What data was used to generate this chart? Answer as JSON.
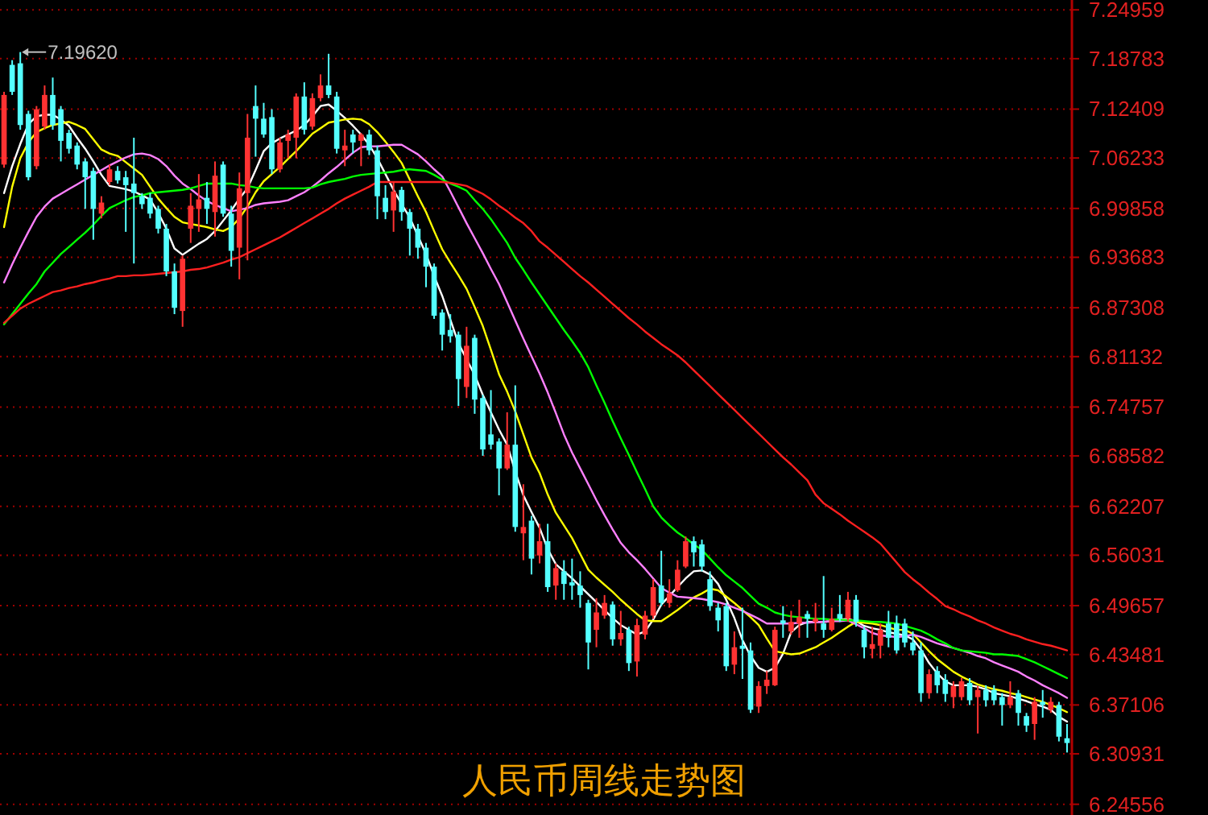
{
  "chart_data": {
    "type": "candlestick",
    "title": "人民币周线走势图",
    "categories": [
      null,
      null,
      null,
      null,
      null,
      null,
      null,
      null,
      null,
      null,
      null,
      null,
      null,
      null,
      null,
      null,
      null,
      null,
      null,
      null,
      null,
      null,
      null,
      null,
      null,
      null,
      null,
      null,
      null,
      null,
      null,
      null,
      null,
      null,
      null,
      null,
      null,
      null,
      null,
      null,
      null,
      null,
      null,
      null,
      null,
      null,
      null,
      null,
      null,
      null,
      null,
      null,
      null,
      null,
      null,
      null,
      null,
      null,
      null,
      null,
      null,
      null,
      null,
      null,
      null,
      null,
      null,
      null,
      null,
      null,
      null,
      null,
      null,
      null,
      null,
      null,
      null,
      null,
      null,
      null,
      null,
      null,
      null,
      null,
      null,
      null,
      null,
      null,
      null,
      null,
      null,
      null,
      null,
      null,
      null,
      null,
      null,
      null,
      null,
      null,
      null,
      null,
      null,
      null,
      null,
      null,
      null,
      null,
      null,
      null,
      null,
      null,
      null,
      null,
      null,
      null,
      null,
      null,
      null,
      null,
      null,
      null,
      null,
      null,
      null,
      null,
      null,
      null,
      null,
      null,
      null,
      null
    ],
    "ohlc": [
      [
        7.054,
        7.146,
        7.05,
        7.142
      ],
      [
        7.18,
        7.186,
        7.142,
        7.146
      ],
      [
        7.182,
        7.1962,
        7.098,
        7.104
      ],
      [
        7.118,
        7.122,
        7.034,
        7.038
      ],
      [
        7.052,
        7.128,
        7.048,
        7.124
      ],
      [
        7.102,
        7.154,
        7.098,
        7.142
      ],
      [
        7.142,
        7.164,
        7.098,
        7.104
      ],
      [
        7.124,
        7.128,
        7.058,
        7.084
      ],
      [
        7.094,
        7.098,
        7.068,
        7.074
      ],
      [
        7.078,
        7.082,
        7.048,
        7.054
      ],
      [
        7.058,
        7.062,
        6.998,
        7.038
      ],
      [
        7.046,
        7.05,
        6.959,
        6.998
      ],
      [
        6.992,
        7.014,
        6.986,
        7.006
      ],
      [
        7.032,
        7.054,
        7.028,
        7.048
      ],
      [
        7.046,
        7.052,
        7.03,
        7.034
      ],
      [
        7.038,
        7.046,
        6.969,
        7.028
      ],
      [
        7.03,
        7.088,
        6.929,
        7.018
      ],
      [
        7.014,
        7.018,
        6.998,
        7.004
      ],
      [
        7.012,
        7.018,
        6.986,
        6.992
      ],
      [
        6.998,
        7.002,
        6.967,
        6.973
      ],
      [
        6.973,
        6.979,
        6.913,
        6.919
      ],
      [
        6.919,
        6.929,
        6.865,
        6.873
      ],
      [
        6.869,
        6.939,
        6.849,
        6.935
      ],
      [
        6.973,
        7.018,
        6.955,
        7.002
      ],
      [
        6.998,
        7.042,
        6.969,
        7.01
      ],
      [
        7.012,
        7.032,
        6.979,
        6.998
      ],
      [
        6.994,
        7.058,
        6.963,
        7.04
      ],
      [
        7.054,
        7.058,
        6.988,
        6.992
      ],
      [
        6.992,
        7.002,
        6.925,
        6.945
      ],
      [
        6.949,
        7.044,
        6.909,
        7.024
      ],
      [
        7.018,
        7.118,
        6.933,
        7.088
      ],
      [
        7.128,
        7.154,
        7.064,
        7.112
      ],
      [
        7.112,
        7.132,
        7.088,
        7.092
      ],
      [
        7.114,
        7.124,
        7.042,
        7.048
      ],
      [
        7.048,
        7.088,
        7.044,
        7.082
      ],
      [
        7.084,
        7.098,
        7.062,
        7.092
      ],
      [
        7.088,
        7.144,
        7.062,
        7.14
      ],
      [
        7.14,
        7.158,
        7.092,
        7.098
      ],
      [
        7.102,
        7.144,
        7.098,
        7.138
      ],
      [
        7.138,
        7.168,
        7.134,
        7.154
      ],
      [
        7.154,
        7.194,
        7.138,
        7.142
      ],
      [
        7.14,
        7.146,
        7.068,
        7.074
      ],
      [
        7.072,
        7.098,
        7.052,
        7.078
      ],
      [
        7.092,
        7.098,
        7.068,
        7.082
      ],
      [
        7.084,
        7.094,
        7.052,
        7.092
      ],
      [
        7.092,
        7.098,
        7.066,
        7.072
      ],
      [
        7.072,
        7.078,
        6.985,
        7.014
      ],
      [
        7.012,
        7.028,
        6.985,
        6.994
      ],
      [
        6.996,
        7.032,
        6.969,
        7.02
      ],
      [
        7.022,
        7.026,
        6.983,
        6.994
      ],
      [
        6.994,
        6.998,
        6.939,
        6.973
      ],
      [
        6.973,
        6.979,
        6.935,
        6.949
      ],
      [
        6.949,
        6.955,
        6.899,
        6.925
      ],
      [
        6.925,
        6.929,
        6.859,
        6.863
      ],
      [
        6.867,
        6.871,
        6.819,
        6.839
      ],
      [
        6.845,
        6.865,
        6.829,
        6.837
      ],
      [
        6.839,
        6.843,
        6.749,
        6.783
      ],
      [
        6.773,
        6.849,
        6.759,
        6.825
      ],
      [
        6.835,
        6.839,
        6.739,
        6.757
      ],
      [
        6.759,
        6.763,
        6.686,
        6.694
      ],
      [
        6.713,
        6.769,
        6.694,
        6.7
      ],
      [
        6.704,
        6.708,
        6.636,
        6.67
      ],
      [
        6.67,
        6.741,
        6.668,
        6.7
      ],
      [
        6.7,
        6.775,
        6.59,
        6.596
      ],
      [
        6.588,
        6.65,
        6.554,
        6.596
      ],
      [
        6.604,
        6.61,
        6.536,
        6.556
      ],
      [
        6.56,
        6.6,
        6.55,
        6.578
      ],
      [
        6.578,
        6.6,
        6.514,
        6.52
      ],
      [
        6.522,
        6.55,
        6.504,
        6.544
      ],
      [
        6.54,
        6.554,
        6.504,
        6.524
      ],
      [
        6.526,
        6.556,
        6.504,
        6.522
      ],
      [
        6.522,
        6.54,
        6.494,
        6.51
      ],
      [
        6.5,
        6.504,
        6.416,
        6.45
      ],
      [
        6.466,
        6.506,
        6.444,
        6.488
      ],
      [
        6.484,
        6.51,
        6.48,
        6.5
      ],
      [
        6.498,
        6.502,
        6.446,
        6.454
      ],
      [
        6.454,
        6.49,
        6.446,
        6.462
      ],
      [
        6.466,
        6.47,
        6.414,
        6.424
      ],
      [
        6.426,
        6.48,
        6.407,
        6.472
      ],
      [
        6.46,
        6.49,
        6.454,
        6.484
      ],
      [
        6.484,
        6.53,
        6.48,
        6.52
      ],
      [
        6.522,
        6.566,
        6.496,
        6.5
      ],
      [
        6.5,
        6.53,
        6.494,
        6.512
      ],
      [
        6.516,
        6.554,
        6.514,
        6.542
      ],
      [
        6.546,
        6.584,
        6.544,
        6.578
      ],
      [
        6.578,
        6.584,
        6.546,
        6.564
      ],
      [
        6.574,
        6.58,
        6.54,
        6.546
      ],
      [
        6.53,
        6.54,
        6.49,
        6.496
      ],
      [
        6.494,
        6.5,
        6.464,
        6.478
      ],
      [
        6.496,
        6.5,
        6.414,
        6.42
      ],
      [
        6.422,
        6.464,
        6.41,
        6.444
      ],
      [
        6.446,
        6.494,
        6.404,
        6.442
      ],
      [
        6.44,
        6.45,
        6.361,
        6.365
      ],
      [
        6.369,
        6.401,
        6.361,
        6.395
      ],
      [
        6.395,
        6.414,
        6.385,
        6.403
      ],
      [
        6.396,
        6.47,
        6.395,
        6.466
      ],
      [
        6.478,
        6.496,
        6.456,
        6.474
      ],
      [
        6.464,
        6.49,
        6.46,
        6.476
      ],
      [
        6.474,
        6.504,
        6.456,
        6.482
      ],
      [
        6.486,
        6.49,
        6.456,
        6.48
      ],
      [
        6.476,
        6.5,
        6.464,
        6.48
      ],
      [
        6.474,
        6.534,
        6.456,
        6.466
      ],
      [
        6.466,
        6.494,
        6.464,
        6.48
      ],
      [
        6.486,
        6.51,
        6.476,
        6.48
      ],
      [
        6.48,
        6.514,
        6.476,
        6.504
      ],
      [
        6.504,
        6.51,
        6.47,
        6.476
      ],
      [
        6.466,
        6.47,
        6.43,
        6.444
      ],
      [
        6.442,
        6.47,
        6.43,
        6.448
      ],
      [
        6.446,
        6.474,
        6.43,
        6.466
      ],
      [
        6.474,
        6.49,
        6.444,
        6.456
      ],
      [
        6.474,
        6.484,
        6.436,
        6.44
      ],
      [
        6.474,
        6.48,
        6.444,
        6.45
      ],
      [
        6.45,
        6.464,
        6.434,
        6.44
      ],
      [
        6.44,
        6.45,
        6.375,
        6.386
      ],
      [
        6.386,
        6.416,
        6.379,
        6.41
      ],
      [
        6.414,
        6.42,
        6.386,
        6.396
      ],
      [
        6.403,
        6.41,
        6.375,
        6.385
      ],
      [
        6.381,
        6.401,
        6.367,
        6.395
      ],
      [
        6.381,
        6.405,
        6.377,
        6.401
      ],
      [
        6.399,
        6.405,
        6.371,
        6.377
      ],
      [
        6.381,
        6.395,
        6.335,
        6.39
      ],
      [
        6.39,
        6.396,
        6.369,
        6.377
      ],
      [
        6.39,
        6.396,
        6.371,
        6.377
      ],
      [
        6.381,
        6.386,
        6.345,
        6.371
      ],
      [
        6.371,
        6.401,
        6.367,
        6.381
      ],
      [
        6.386,
        6.39,
        6.345,
        6.361
      ],
      [
        6.357,
        6.361,
        6.337,
        6.345
      ],
      [
        6.347,
        6.381,
        6.327,
        6.375
      ],
      [
        6.375,
        6.39,
        6.355,
        6.371
      ],
      [
        6.365,
        6.381,
        6.361,
        6.375
      ],
      [
        6.371,
        6.375,
        6.325,
        6.331
      ],
      [
        6.329,
        6.347,
        6.311,
        6.323
      ]
    ],
    "series": [
      {
        "type": "line",
        "color": "#ffffff",
        "values": [
          7.018,
          7.052,
          7.08,
          7.105,
          7.115,
          7.117,
          7.117,
          7.111,
          7.103,
          7.088,
          7.074,
          7.058,
          7.041,
          7.027,
          7.025,
          7.023,
          7.02,
          7.015,
          7.01,
          6.993,
          6.973,
          6.948,
          6.94,
          6.947,
          6.954,
          6.96,
          6.97,
          6.983,
          6.996,
          7.011,
          7.024,
          7.047,
          7.071,
          7.081,
          7.087,
          7.092,
          7.097,
          7.104,
          7.115,
          7.128,
          7.13,
          7.122,
          7.113,
          7.103,
          7.092,
          7.079,
          7.062,
          7.042,
          7.022,
          7.004,
          6.987,
          6.964,
          6.941,
          6.913,
          6.888,
          6.858,
          6.828,
          6.808,
          6.788,
          6.763,
          6.741,
          6.719,
          6.7,
          6.666,
          6.636,
          6.615,
          6.595,
          6.568,
          6.549,
          6.54,
          6.531,
          6.521,
          6.511,
          6.501,
          6.491,
          6.481,
          6.472,
          6.466,
          6.46,
          6.464,
          6.479,
          6.498,
          6.509,
          6.52,
          6.531,
          6.54,
          6.541,
          6.536,
          6.524,
          6.504,
          6.481,
          6.453,
          6.433,
          6.418,
          6.413,
          6.418,
          6.436,
          6.463,
          6.472,
          6.476,
          6.476,
          6.476,
          6.477,
          6.479,
          6.48,
          6.477,
          6.471,
          6.468,
          6.466,
          6.463,
          6.461,
          6.459,
          6.454,
          6.441,
          6.424,
          6.411,
          6.401,
          6.396,
          6.396,
          6.396,
          6.394,
          6.391,
          6.386,
          6.384,
          6.382,
          6.379,
          6.376,
          6.372,
          6.369,
          6.365,
          6.356,
          6.35
        ]
      },
      {
        "type": "line",
        "color": "#ffff00",
        "values": [
          6.975,
          7.026,
          7.062,
          7.082,
          7.095,
          7.1,
          7.104,
          7.106,
          7.108,
          7.104,
          7.099,
          7.086,
          7.073,
          7.068,
          7.065,
          7.057,
          7.049,
          7.041,
          7.026,
          7.011,
          6.999,
          6.988,
          6.981,
          6.979,
          6.977,
          6.975,
          6.972,
          6.97,
          6.975,
          6.986,
          7.001,
          7.019,
          7.033,
          7.042,
          7.051,
          7.061,
          7.071,
          7.082,
          7.093,
          7.1,
          7.107,
          7.109,
          7.111,
          7.112,
          7.111,
          7.105,
          7.095,
          7.083,
          7.07,
          7.056,
          7.035,
          7.014,
          6.994,
          6.97,
          6.947,
          6.93,
          6.914,
          6.897,
          6.874,
          6.85,
          6.82,
          6.789,
          6.767,
          6.742,
          6.713,
          6.684,
          6.664,
          6.637,
          6.614,
          6.598,
          6.582,
          6.562,
          6.542,
          6.532,
          6.523,
          6.514,
          6.504,
          6.495,
          6.486,
          6.478,
          6.477,
          6.477,
          6.484,
          6.491,
          6.499,
          6.507,
          6.512,
          6.518,
          6.516,
          6.508,
          6.5,
          6.491,
          6.482,
          6.472,
          6.455,
          6.439,
          6.437,
          6.435,
          6.436,
          6.44,
          6.444,
          6.45,
          6.456,
          6.463,
          6.47,
          6.476,
          6.475,
          6.474,
          6.472,
          6.469,
          6.466,
          6.466,
          6.461,
          6.45,
          6.439,
          6.429,
          6.421,
          6.413,
          6.407,
          6.402,
          6.397,
          6.394,
          6.391,
          6.389,
          6.386,
          6.384,
          6.381,
          6.378,
          6.375,
          6.371,
          6.367,
          6.362
        ]
      },
      {
        "type": "line",
        "color": "#ff80ff",
        "values": [
          6.905,
          6.928,
          6.949,
          6.969,
          6.988,
          7.001,
          7.011,
          7.017,
          7.023,
          7.029,
          7.035,
          7.041,
          7.047,
          7.053,
          7.058,
          7.063,
          7.067,
          7.068,
          7.066,
          7.061,
          7.052,
          7.04,
          7.03,
          7.023,
          7.015,
          7.008,
          7.003,
          6.999,
          6.995,
          6.997,
          6.999,
          7.003,
          7.005,
          7.006,
          7.007,
          7.009,
          7.014,
          7.019,
          7.026,
          7.034,
          7.043,
          7.051,
          7.06,
          7.069,
          7.076,
          7.077,
          7.077,
          7.078,
          7.079,
          7.079,
          7.073,
          7.067,
          7.058,
          7.048,
          7.039,
          7.02,
          7.0,
          6.98,
          6.961,
          6.942,
          6.922,
          6.903,
          6.88,
          6.857,
          6.834,
          6.812,
          6.79,
          6.766,
          6.74,
          6.713,
          6.69,
          6.67,
          6.65,
          6.63,
          6.611,
          6.593,
          6.576,
          6.564,
          6.554,
          6.543,
          6.531,
          6.519,
          6.513,
          6.508,
          6.507,
          6.506,
          6.505,
          6.503,
          6.501,
          6.498,
          6.494,
          6.49,
          6.485,
          6.48,
          6.474,
          6.474,
          6.474,
          6.474,
          6.475,
          6.475,
          6.476,
          6.476,
          6.477,
          6.477,
          6.478,
          6.473,
          6.468,
          6.462,
          6.459,
          6.458,
          6.457,
          6.458,
          6.46,
          6.457,
          6.453,
          6.449,
          6.446,
          6.443,
          6.44,
          6.437,
          6.433,
          6.43,
          6.425,
          6.421,
          6.417,
          6.413,
          6.407,
          6.402,
          6.396,
          6.391,
          6.386,
          6.38
        ]
      },
      {
        "type": "line",
        "color": "#00ff00",
        "values": [
          6.852,
          6.865,
          6.878,
          6.891,
          6.903,
          6.919,
          6.93,
          6.941,
          6.95,
          6.959,
          6.968,
          6.978,
          6.989,
          6.999,
          7.004,
          7.009,
          7.013,
          7.015,
          7.018,
          7.019,
          7.02,
          7.021,
          7.022,
          7.024,
          7.027,
          7.03,
          7.03,
          7.03,
          7.03,
          7.028,
          7.027,
          7.025,
          7.024,
          7.024,
          7.024,
          7.024,
          7.024,
          7.024,
          7.025,
          7.029,
          7.032,
          7.034,
          7.036,
          7.039,
          7.041,
          7.042,
          7.043,
          7.044,
          7.045,
          7.047,
          7.048,
          7.047,
          7.046,
          7.041,
          7.035,
          7.03,
          7.026,
          7.021,
          7.009,
          6.998,
          6.985,
          6.97,
          6.955,
          6.936,
          6.921,
          6.905,
          6.89,
          6.875,
          6.86,
          6.845,
          6.831,
          6.816,
          6.798,
          6.775,
          6.753,
          6.73,
          6.708,
          6.687,
          6.665,
          6.644,
          6.622,
          6.608,
          6.598,
          6.589,
          6.582,
          6.574,
          6.567,
          6.556,
          6.545,
          6.535,
          6.527,
          6.519,
          6.509,
          6.499,
          6.494,
          6.488,
          6.485,
          6.483,
          6.482,
          6.481,
          6.48,
          6.48,
          6.479,
          6.479,
          6.478,
          6.478,
          6.477,
          6.476,
          6.476,
          6.475,
          6.474,
          6.471,
          6.468,
          6.465,
          6.46,
          6.454,
          6.449,
          6.443,
          6.44,
          6.439,
          6.438,
          6.437,
          6.435,
          6.435,
          6.434,
          6.433,
          6.429,
          6.425,
          6.42,
          6.415,
          6.41,
          6.405
        ]
      },
      {
        "type": "line",
        "color": "#ff2020",
        "values": [
          6.854,
          6.863,
          6.872,
          6.878,
          6.883,
          6.888,
          6.893,
          6.895,
          6.898,
          6.9,
          6.903,
          6.905,
          6.908,
          6.91,
          6.913,
          6.913,
          6.914,
          6.914,
          6.915,
          6.916,
          6.917,
          6.918,
          6.919,
          6.921,
          6.922,
          6.924,
          6.927,
          6.93,
          6.934,
          6.937,
          6.942,
          6.947,
          6.952,
          6.957,
          6.962,
          6.968,
          6.974,
          6.98,
          6.986,
          6.992,
          6.998,
          7.005,
          7.011,
          7.016,
          7.021,
          7.026,
          7.032,
          7.032,
          7.032,
          7.032,
          7.032,
          7.032,
          7.032,
          7.032,
          7.032,
          7.031,
          7.029,
          7.027,
          7.022,
          7.017,
          7.01,
          7.002,
          6.995,
          6.987,
          6.98,
          6.97,
          6.957,
          6.949,
          6.94,
          6.931,
          6.922,
          6.913,
          6.905,
          6.896,
          6.887,
          6.878,
          6.869,
          6.86,
          6.852,
          6.843,
          6.835,
          6.827,
          6.82,
          6.813,
          6.804,
          6.794,
          6.784,
          6.774,
          6.764,
          6.754,
          6.744,
          6.734,
          6.724,
          6.714,
          6.704,
          6.694,
          6.684,
          6.675,
          6.665,
          6.655,
          6.637,
          6.626,
          6.619,
          6.612,
          6.604,
          6.597,
          6.59,
          6.583,
          6.575,
          6.563,
          6.551,
          6.539,
          6.53,
          6.522,
          6.513,
          6.505,
          6.496,
          6.492,
          6.487,
          6.483,
          6.478,
          6.474,
          6.469,
          6.465,
          6.461,
          6.458,
          6.454,
          6.451,
          6.448,
          6.446,
          6.443,
          6.44
        ]
      }
    ],
    "tick_labels": "y",
    "ylim": [
      6.232,
      7.262
    ],
    "yticks": [
      7.24959,
      7.18783,
      7.12409,
      7.06233,
      6.99858,
      6.93683,
      6.87308,
      6.81132,
      6.74757,
      6.68582,
      6.62207,
      6.56031,
      6.49657,
      6.43481,
      6.37106,
      6.30931,
      6.24556
    ],
    "grid": "y",
    "annotations": [
      "7.19620"
    ]
  }
}
